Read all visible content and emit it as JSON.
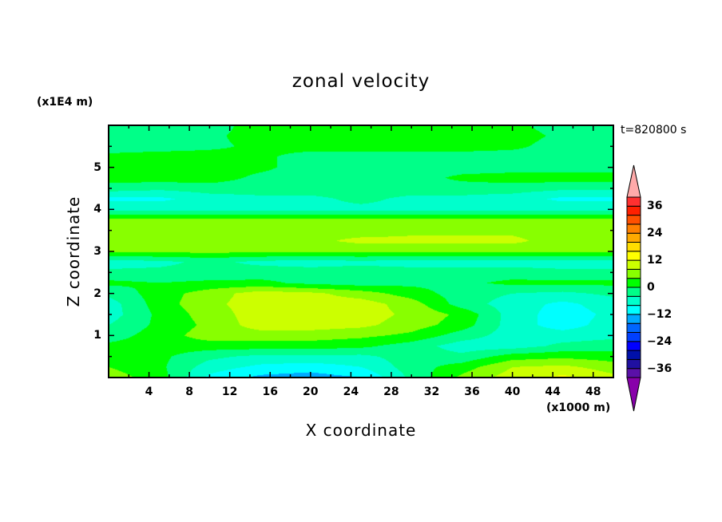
{
  "chart_data": {
    "type": "heatmap",
    "subtype": "filled-contour",
    "title": "zonal velocity",
    "xlabel": "X coordinate",
    "ylabel": "Z coordinate",
    "x_unit_label": "(x1000 m)",
    "y_unit_label": "(x1E4 m)",
    "time_label": "t=820800 s",
    "xlim": [
      0,
      50
    ],
    "ylim": [
      0,
      6
    ],
    "x_ticks": [
      4,
      8,
      12,
      16,
      20,
      24,
      28,
      32,
      36,
      40,
      44,
      48
    ],
    "y_ticks": [
      1,
      2,
      3,
      4,
      5
    ],
    "grid": false,
    "colorbar": {
      "levels_min": -40,
      "levels_max": 40,
      "level_step": 4,
      "tick_labels": [
        "36",
        "24",
        "12",
        "0",
        "−12",
        "−24",
        "−36"
      ],
      "tick_values": [
        36,
        24,
        12,
        0,
        -12,
        -24,
        -36
      ],
      "colors_low_to_high": [
        "#5a10a8",
        "#2010a0",
        "#0010aa",
        "#0000ff",
        "#0040ff",
        "#0066ff",
        "#00aaff",
        "#00ffff",
        "#00ffcc",
        "#00ff88",
        "#00ff00",
        "#88ff00",
        "#ccff00",
        "#ffff00",
        "#ffdd00",
        "#ffaa00",
        "#ff8000",
        "#ff5000",
        "#ff2000",
        "#ff3030"
      ],
      "under_color": "#8800aa",
      "over_color": "#ffaaaa",
      "extend": "both",
      "placement": "right"
    },
    "field": {
      "x": [
        0,
        5,
        10,
        15,
        20,
        25,
        30,
        35,
        40,
        45,
        50
      ],
      "z": [
        0,
        0.25,
        0.5,
        0.75,
        1.0,
        1.25,
        1.5,
        1.75,
        2.0,
        2.25,
        2.5,
        2.75,
        3.0,
        3.25,
        3.5,
        3.75,
        4.0,
        4.25,
        4.5,
        4.75,
        5.0,
        5.25,
        5.5,
        5.75,
        6.0
      ],
      "values": [
        [
          6,
          2,
          -9,
          -13,
          -14,
          -12,
          -3,
          5,
          10,
          13,
          9
        ],
        [
          4,
          1,
          -6,
          -9,
          -10,
          -8,
          -2,
          2,
          8,
          9,
          6
        ],
        [
          1,
          1,
          -3,
          -5,
          -5,
          -5,
          -2,
          -3,
          2,
          3,
          2
        ],
        [
          1,
          2,
          2,
          2,
          2,
          1,
          -2,
          -6,
          -6,
          -3,
          -2
        ],
        [
          -2,
          2,
          6,
          6,
          6,
          5,
          3,
          -2,
          -6,
          -6,
          -5
        ],
        [
          -4,
          1,
          5,
          10,
          10,
          9,
          6,
          2,
          -6,
          -10,
          -6
        ],
        [
          -6,
          1,
          6,
          10,
          10,
          10,
          7,
          3,
          -6,
          -10,
          -7
        ],
        [
          -6,
          2,
          7,
          10,
          10,
          10,
          6,
          -2,
          -6,
          -9,
          -6
        ],
        [
          -3,
          2,
          6,
          10,
          9,
          6,
          2,
          -2,
          -4,
          -5,
          -3
        ],
        [
          1,
          0,
          1,
          1,
          -1,
          -2,
          -1,
          -1,
          1,
          1,
          1
        ],
        [
          -3,
          -3,
          -3,
          -2,
          -2,
          -2,
          -2,
          -2,
          -2,
          -3,
          -3
        ],
        [
          -6,
          -5,
          -3,
          -5,
          -6,
          -5,
          -6,
          -6,
          -6,
          -6,
          -6
        ],
        [
          5,
          5,
          5,
          5,
          5,
          5,
          5,
          5,
          5,
          5,
          5
        ],
        [
          6,
          6,
          6,
          6,
          7,
          9,
          9,
          9,
          9,
          6,
          6
        ],
        [
          6,
          6,
          6,
          6,
          7,
          6,
          7,
          7,
          7,
          6,
          6
        ],
        [
          5,
          5,
          5,
          5,
          5,
          5,
          5,
          5,
          5,
          5,
          5
        ],
        [
          -5,
          -5,
          -5,
          -5,
          -5,
          -5,
          -5,
          -5,
          -5,
          -5,
          -5
        ],
        [
          -9,
          -9,
          -6,
          -5,
          -5,
          -3,
          -5,
          -5,
          -6,
          -9,
          -9
        ],
        [
          -2,
          -3,
          -2,
          -2,
          -2,
          -2,
          -2,
          -2,
          -2,
          -3,
          -3
        ],
        [
          2,
          2,
          2,
          -1,
          -2,
          -2,
          -2,
          1,
          2,
          2,
          2
        ],
        [
          2,
          2,
          2,
          1,
          -2,
          -2,
          -2,
          -2,
          -2,
          -2,
          -2
        ],
        [
          1,
          2,
          2,
          1,
          -2,
          -2,
          -2,
          -2,
          -2,
          -1,
          -1
        ],
        [
          -2,
          -2,
          -1,
          1,
          2,
          2,
          2,
          2,
          1,
          -2,
          -2
        ],
        [
          -2,
          -2,
          -1,
          2,
          2,
          2,
          2,
          2,
          2,
          -1,
          -2
        ],
        [
          -2,
          -2,
          -2,
          2,
          2,
          2,
          2,
          2,
          1,
          -2,
          -2
        ]
      ]
    }
  }
}
